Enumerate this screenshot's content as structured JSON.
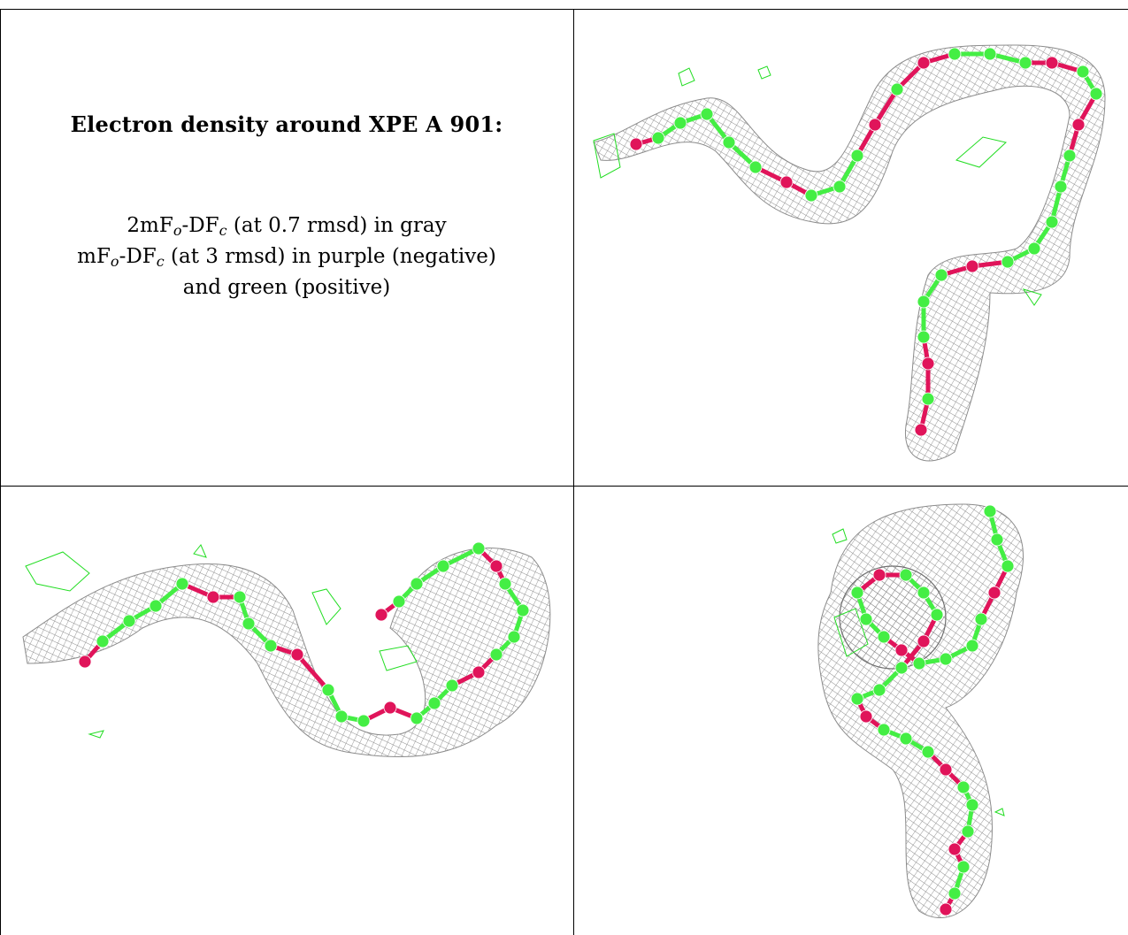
{
  "caption": {
    "title": "Electron density around XPE A 901:",
    "line1": {
      "a": "2mF",
      "a_sub": "o",
      "b": "-DF",
      "b_sub": "c",
      "rest": " (at 0.7 rmsd) in gray"
    },
    "line2": {
      "a": "mF",
      "a_sub": "o",
      "b": "-DF",
      "b_sub": "c",
      "rest": " (at 3 rmsd) in purple (negative)"
    },
    "line3": "and green (positive)"
  },
  "colors": {
    "mesh_2fofc": "#8c8c8c",
    "difference_positive": "#22dd22",
    "carbon": "#44ee44",
    "oxygen": "#e0145a",
    "grid_line": "#000000"
  },
  "panels": [
    {
      "id": "view-1",
      "icon": "electron-density-map"
    },
    {
      "id": "view-2",
      "icon": "electron-density-map"
    },
    {
      "id": "view-3",
      "icon": "electron-density-map"
    }
  ]
}
